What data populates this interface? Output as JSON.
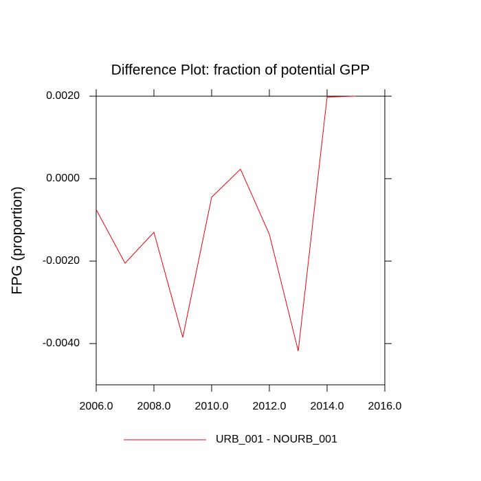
{
  "chart_data": {
    "type": "line",
    "title": "Difference Plot: fraction of potential GPP",
    "y_label": "FPG  (proportion)",
    "x": [
      2006,
      2007,
      2008,
      2009,
      2010,
      2011,
      2012,
      2013,
      2014,
      2015
    ],
    "series": [
      {
        "name": "URB_001 - NOURB_001",
        "color": "#e8000b",
        "values": [
          -0.00075,
          -0.00205,
          -0.0013,
          -0.00385,
          -0.00045,
          0.00023,
          -0.00135,
          -0.00418,
          0.00198,
          0.002
        ]
      }
    ],
    "xlim": [
      2006,
      2016
    ],
    "xticks": [
      {
        "value": 2006,
        "label": "2006.0"
      },
      {
        "value": 2008,
        "label": "2008.0"
      },
      {
        "value": 2010,
        "label": "2010.0"
      },
      {
        "value": 2012,
        "label": "2012.0"
      },
      {
        "value": 2014,
        "label": "2014.0"
      },
      {
        "value": 2016,
        "label": "2016.0"
      }
    ],
    "ylim": [
      -0.005,
      0.002
    ],
    "yticks": [
      {
        "value": -0.004,
        "label": "-0.0040"
      },
      {
        "value": -0.002,
        "label": "-0.0020"
      },
      {
        "value": 0,
        "label": "0.0000"
      },
      {
        "value": 0.002,
        "label": "0.0020"
      }
    ],
    "grid": false
  }
}
